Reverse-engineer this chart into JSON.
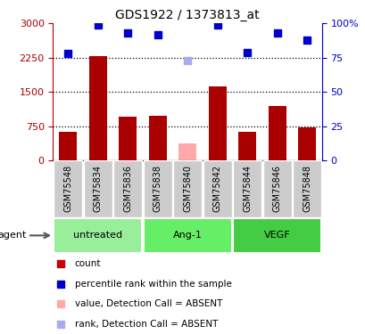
{
  "title": "GDS1922 / 1373813_at",
  "samples": [
    "GSM75548",
    "GSM75834",
    "GSM75836",
    "GSM75838",
    "GSM75840",
    "GSM75842",
    "GSM75844",
    "GSM75846",
    "GSM75848"
  ],
  "bar_values": [
    620,
    2280,
    950,
    980,
    null,
    1610,
    620,
    1200,
    730
  ],
  "bar_absent_values": [
    null,
    null,
    null,
    null,
    380,
    null,
    null,
    null,
    null
  ],
  "rank_values": [
    78,
    99,
    93,
    92,
    null,
    99,
    79,
    93,
    88
  ],
  "rank_absent_values": [
    null,
    null,
    null,
    null,
    73,
    null,
    null,
    null,
    null
  ],
  "bar_color": "#aa0000",
  "bar_absent_color": "#ffaaaa",
  "rank_color": "#0000cc",
  "rank_absent_color": "#aaaaee",
  "ylim_left": [
    0,
    3000
  ],
  "ylim_right": [
    0,
    100
  ],
  "yticks_left": [
    0,
    750,
    1500,
    2250,
    3000
  ],
  "ytick_labels_left": [
    "0",
    "750",
    "1500",
    "2250",
    "3000"
  ],
  "yticks_right": [
    0,
    25,
    50,
    75,
    100
  ],
  "ytick_labels_right": [
    "0",
    "25",
    "50",
    "75",
    "100%"
  ],
  "groups": [
    {
      "label": "untreated",
      "indices": [
        0,
        1,
        2
      ],
      "color": "#99ee99"
    },
    {
      "label": "Ang-1",
      "indices": [
        3,
        4,
        5
      ],
      "color": "#66ee66"
    },
    {
      "label": "VEGF",
      "indices": [
        6,
        7,
        8
      ],
      "color": "#44cc44"
    }
  ],
  "legend_items": [
    {
      "label": "count",
      "color": "#cc0000"
    },
    {
      "label": "percentile rank within the sample",
      "color": "#0000cc"
    },
    {
      "label": "value, Detection Call = ABSENT",
      "color": "#ffaaaa"
    },
    {
      "label": "rank, Detection Call = ABSENT",
      "color": "#aaaaee"
    }
  ],
  "agent_label": "agent",
  "sample_box_color": "#cccccc",
  "bar_width": 0.6
}
